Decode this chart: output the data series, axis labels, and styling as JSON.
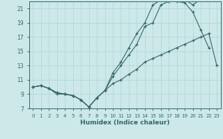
{
  "xlabel": "Humidex (Indice chaleur)",
  "bg_color": "#cce8e8",
  "grid_color": "#b0d4d4",
  "line_color": "#336666",
  "xlim": [
    -0.5,
    23.5
  ],
  "ylim": [
    7,
    22
  ],
  "yticks": [
    7,
    9,
    11,
    13,
    15,
    17,
    19,
    21
  ],
  "xticks": [
    0,
    1,
    2,
    3,
    4,
    5,
    6,
    7,
    8,
    9,
    10,
    11,
    12,
    13,
    14,
    15,
    16,
    17,
    18,
    19,
    20,
    21,
    22,
    23
  ],
  "line1_x": [
    0,
    1,
    2,
    3,
    4,
    5,
    6,
    7,
    8,
    9,
    10,
    11,
    12,
    13,
    14,
    15,
    16,
    17,
    18,
    19,
    20,
    21,
    22,
    23
  ],
  "line1_y": [
    10.0,
    10.2,
    9.8,
    9.0,
    9.0,
    8.8,
    8.2,
    7.2,
    8.5,
    9.5,
    10.5,
    11.0,
    11.8,
    12.5,
    13.5,
    14.0,
    14.5,
    15.0,
    15.5,
    16.0,
    16.5,
    17.0,
    17.5,
    13.0
  ],
  "line2_x": [
    0,
    1,
    2,
    3,
    4,
    5,
    6,
    7,
    8,
    9,
    10,
    11,
    12,
    13,
    14,
    15,
    16,
    17,
    18,
    19,
    20,
    21,
    22
  ],
  "line2_y": [
    10.0,
    10.2,
    9.8,
    9.2,
    9.0,
    8.8,
    8.2,
    7.2,
    8.5,
    9.5,
    11.5,
    13.0,
    14.5,
    16.0,
    18.5,
    19.0,
    21.5,
    22.0,
    22.0,
    21.8,
    20.5,
    18.0,
    15.5
  ],
  "line3_x": [
    0,
    1,
    2,
    3,
    4,
    5,
    6,
    7,
    8,
    9,
    10,
    11,
    12,
    13,
    14,
    15,
    16,
    17,
    18,
    19,
    20,
    21
  ],
  "line3_y": [
    10.0,
    10.2,
    9.8,
    9.2,
    9.0,
    8.8,
    8.2,
    7.2,
    8.5,
    9.5,
    12.0,
    13.5,
    15.5,
    17.5,
    19.0,
    21.5,
    22.2,
    22.5,
    22.5,
    22.3,
    21.5,
    22.3
  ]
}
